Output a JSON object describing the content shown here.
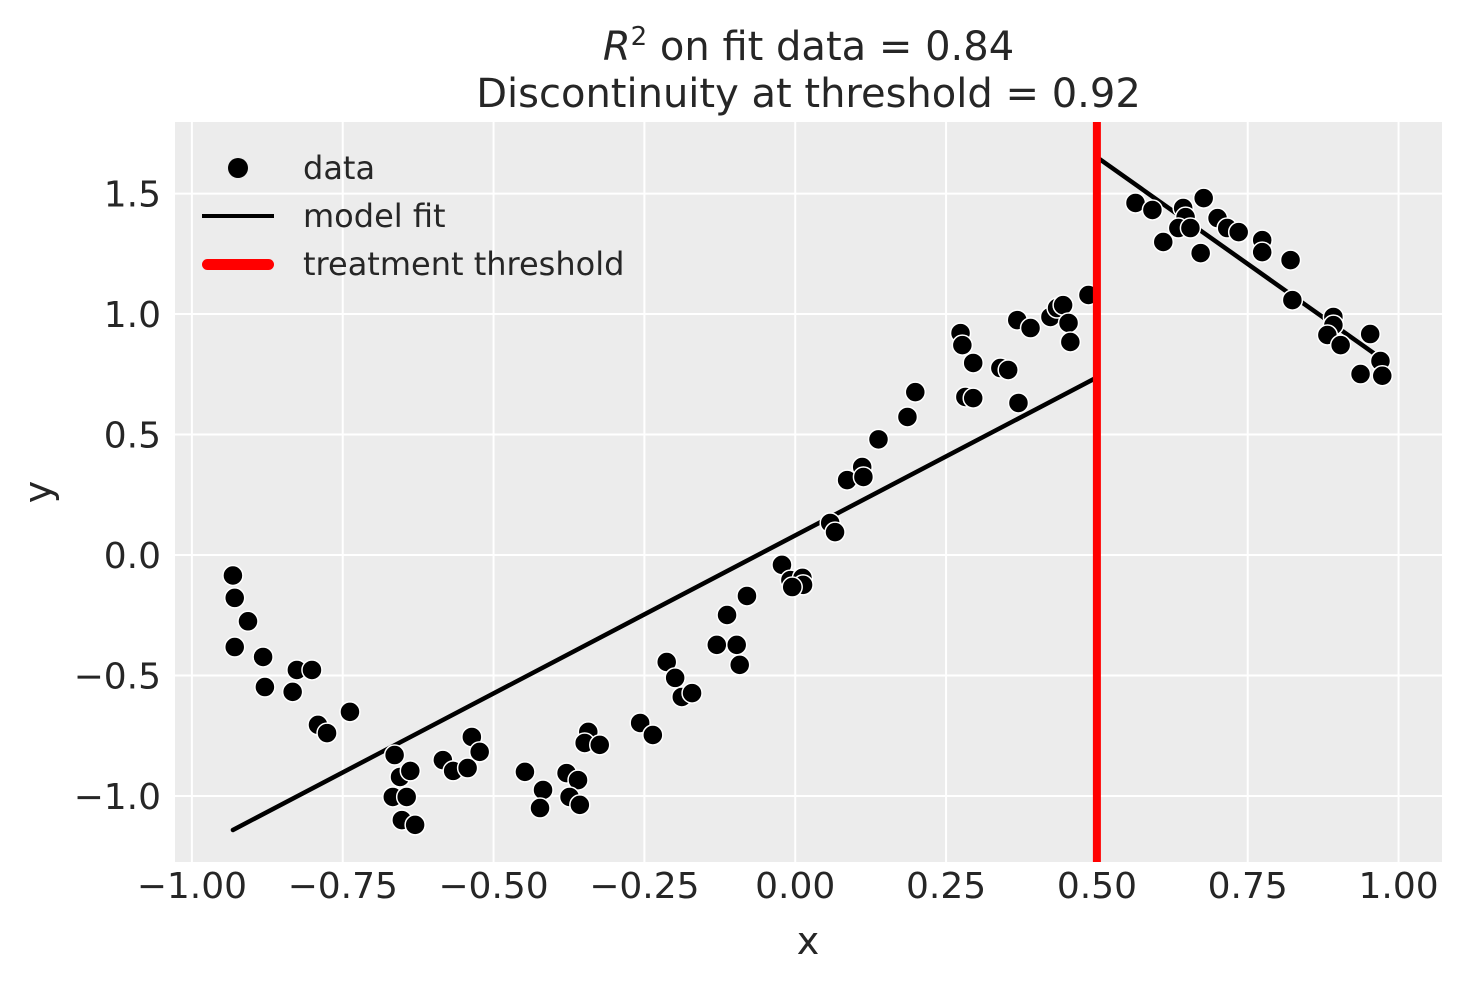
{
  "figure": {
    "title": {
      "math_var": "R",
      "exponent": "2",
      "line1_rest": " on fit data = 0.84",
      "line2": "Discontinuity at threshold = 0.92"
    },
    "xlabel": "x",
    "ylabel": "y"
  },
  "legend": [
    {
      "label": "data",
      "swatch": "dot-marker",
      "color": "#000000"
    },
    {
      "label": "model fit",
      "swatch": "line",
      "color": "#000000"
    },
    {
      "label": "treatment threshold",
      "swatch": "thick-line",
      "color": "#ff0000"
    }
  ],
  "chart_data": {
    "type": "scatter",
    "title": "R^2 on fit data = 0.84\nDiscontinuity at threshold = 0.92",
    "xlabel": "x",
    "ylabel": "y",
    "xlim": [
      -1.028,
      1.072
    ],
    "ylim": [
      -1.274,
      1.797
    ],
    "grid": true,
    "legend_position": "upper left",
    "x_ticks": {
      "values": [
        -1.0,
        -0.75,
        -0.5,
        -0.25,
        0.0,
        0.25,
        0.5,
        0.75,
        1.0
      ],
      "labels": [
        "−1.00",
        "−0.75",
        "−0.50",
        "−0.25",
        "0.00",
        "0.25",
        "0.50",
        "0.75",
        "1.00"
      ]
    },
    "y_ticks": {
      "values": [
        1.5,
        1.0,
        0.5,
        0.0,
        -0.5,
        -1.0
      ],
      "labels": [
        "1.5",
        "1.0",
        "0.5",
        "0.0",
        "−0.5",
        "−1.0"
      ]
    },
    "r_squared_on_fit_data": 0.84,
    "discontinuity_at_threshold": 0.92,
    "threshold": {
      "x": 0.5,
      "color": "#ff0000",
      "linewidth": 8
    },
    "model_fit": {
      "color": "#000000",
      "linewidth": 4.5,
      "segments": [
        {
          "x": [
            -0.932,
            0.5
          ],
          "y": [
            -1.141,
            0.737
          ]
        },
        {
          "x": [
            0.5,
            0.975
          ],
          "y": [
            1.651,
            0.809
          ]
        }
      ]
    },
    "points": [
      [
        -0.932,
        -0.085
      ],
      [
        -0.929,
        -0.178
      ],
      [
        -0.907,
        -0.275
      ],
      [
        -0.929,
        -0.382
      ],
      [
        -0.882,
        -0.423
      ],
      [
        -0.826,
        -0.477
      ],
      [
        -0.801,
        -0.477
      ],
      [
        -0.879,
        -0.548
      ],
      [
        -0.833,
        -0.568
      ],
      [
        -0.738,
        -0.651
      ],
      [
        -0.791,
        -0.705
      ],
      [
        -0.776,
        -0.739
      ],
      [
        -0.664,
        -0.83
      ],
      [
        -0.655,
        -0.921
      ],
      [
        -0.638,
        -0.896
      ],
      [
        -0.667,
        -1.004
      ],
      [
        -0.644,
        -1.004
      ],
      [
        -0.652,
        -1.1
      ],
      [
        -0.63,
        -1.12
      ],
      [
        -0.584,
        -0.851
      ],
      [
        -0.567,
        -0.896
      ],
      [
        -0.543,
        -0.884
      ],
      [
        -0.536,
        -0.755
      ],
      [
        -0.523,
        -0.817
      ],
      [
        -0.448,
        -0.9
      ],
      [
        -0.418,
        -0.975
      ],
      [
        -0.423,
        -1.05
      ],
      [
        -0.379,
        -0.905
      ],
      [
        -0.36,
        -0.934
      ],
      [
        -0.374,
        -1.004
      ],
      [
        -0.357,
        -1.037
      ],
      [
        -0.343,
        -0.734
      ],
      [
        -0.349,
        -0.78
      ],
      [
        -0.324,
        -0.788
      ],
      [
        -0.257,
        -0.697
      ],
      [
        -0.236,
        -0.747
      ],
      [
        -0.213,
        -0.444
      ],
      [
        -0.199,
        -0.51
      ],
      [
        -0.188,
        -0.589
      ],
      [
        -0.171,
        -0.573
      ],
      [
        -0.13,
        -0.373
      ],
      [
        -0.097,
        -0.373
      ],
      [
        -0.113,
        -0.249
      ],
      [
        -0.092,
        -0.456
      ],
      [
        -0.08,
        -0.17
      ],
      [
        -0.022,
        -0.041
      ],
      [
        -0.008,
        -0.104
      ],
      [
        0.012,
        -0.095
      ],
      [
        0.013,
        -0.124
      ],
      [
        -0.005,
        -0.133
      ],
      [
        0.058,
        0.133
      ],
      [
        0.066,
        0.095
      ],
      [
        0.086,
        0.311
      ],
      [
        0.111,
        0.365
      ],
      [
        0.113,
        0.324
      ],
      [
        0.138,
        0.48
      ],
      [
        0.186,
        0.573
      ],
      [
        0.199,
        0.676
      ],
      [
        0.274,
        0.921
      ],
      [
        0.277,
        0.871
      ],
      [
        0.295,
        0.797
      ],
      [
        0.282,
        0.656
      ],
      [
        0.295,
        0.651
      ],
      [
        0.34,
        0.776
      ],
      [
        0.353,
        0.768
      ],
      [
        0.368,
        0.975
      ],
      [
        0.39,
        0.942
      ],
      [
        0.37,
        0.631
      ],
      [
        0.423,
        0.988
      ],
      [
        0.434,
        1.025
      ],
      [
        0.444,
        1.037
      ],
      [
        0.453,
        0.963
      ],
      [
        0.456,
        0.884
      ],
      [
        0.486,
        1.079
      ],
      [
        0.564,
        1.461
      ],
      [
        0.592,
        1.432
      ],
      [
        0.643,
        1.44
      ],
      [
        0.647,
        1.402
      ],
      [
        0.677,
        1.481
      ],
      [
        0.635,
        1.357
      ],
      [
        0.655,
        1.357
      ],
      [
        0.61,
        1.299
      ],
      [
        0.7,
        1.398
      ],
      [
        0.716,
        1.357
      ],
      [
        0.735,
        1.34
      ],
      [
        0.672,
        1.253
      ],
      [
        0.774,
        1.307
      ],
      [
        0.774,
        1.257
      ],
      [
        0.821,
        1.224
      ],
      [
        0.824,
        1.058
      ],
      [
        0.892,
        0.988
      ],
      [
        0.892,
        0.954
      ],
      [
        0.882,
        0.913
      ],
      [
        0.904,
        0.871
      ],
      [
        0.953,
        0.917
      ],
      [
        0.97,
        0.805
      ],
      [
        0.937,
        0.751
      ],
      [
        0.973,
        0.744
      ]
    ],
    "marker": {
      "radius": 10,
      "face_color": "#000000",
      "edge_color": "#ffffff",
      "edge_width": 1.5
    },
    "colors": {
      "axes_background": "#ececec",
      "grid": "#ffffff",
      "text": "#262626",
      "data": "#000000",
      "model_fit": "#000000",
      "threshold": "#ff0000"
    }
  }
}
